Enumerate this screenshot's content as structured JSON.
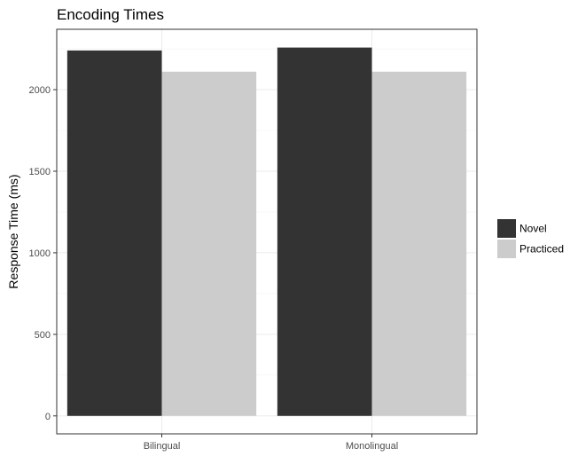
{
  "chart_data": {
    "type": "bar",
    "title": "Encoding Times",
    "xlabel": "",
    "ylabel": "Response Time (ms)",
    "categories": [
      "Bilingual",
      "Monolingual"
    ],
    "series": [
      {
        "name": "Novel",
        "color": "#333333",
        "values": [
          2240,
          2258
        ]
      },
      {
        "name": "Practiced",
        "color": "#cccccc",
        "values": [
          2110,
          2110
        ]
      }
    ],
    "ylim": [
      -110,
      2370
    ],
    "yticks": [
      0,
      500,
      1000,
      1500,
      2000
    ],
    "ytick_labels": [
      "0",
      "500",
      "1000",
      "1500",
      "2000"
    ],
    "grid": true,
    "legend_position": "right"
  }
}
